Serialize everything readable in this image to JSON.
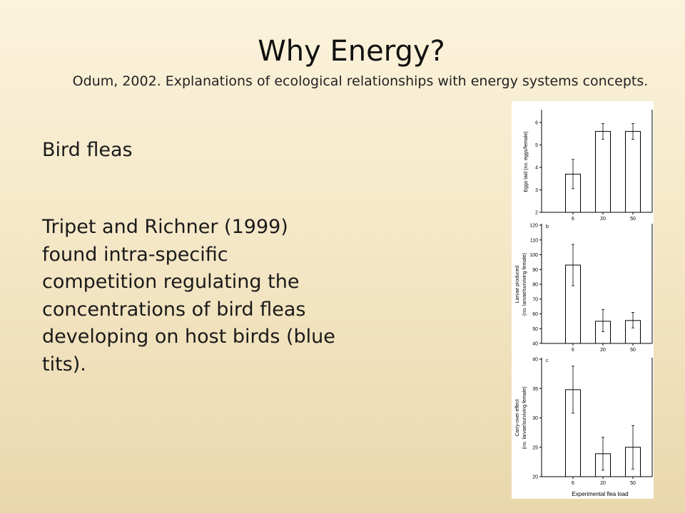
{
  "slide": {
    "title": "Why Energy?",
    "subtitle": "Odum, 2002.  Explanations of ecological relationships with energy systems concepts.",
    "heading": "Bird fleas",
    "body": "Tripet and Richner (1999) found intra-specific competition regulating the concentrations of bird fleas developing on host birds (blue tits)."
  },
  "figure": {
    "xlabel": "Experimental flea load"
  },
  "chart_data": [
    {
      "type": "bar",
      "panel_label": "",
      "ylabel": "Eggs laid (no. eggs/female)",
      "ylim": [
        2,
        6.5
      ],
      "yticks": [
        "2",
        "3",
        "4",
        "5",
        "6"
      ],
      "categories": [
        "6",
        "20",
        "50"
      ],
      "values": [
        3.7,
        5.6,
        5.6
      ],
      "error": [
        [
          3.05,
          4.35
        ],
        [
          5.25,
          5.95
        ],
        [
          5.25,
          5.95
        ]
      ]
    },
    {
      "type": "bar",
      "panel_label": "b",
      "ylabel_line1": "Larvae produced",
      "ylabel_line2": "(no. larvae/surviving female)",
      "ylim": [
        40,
        120
      ],
      "yticks": [
        "40",
        "50",
        "60",
        "70",
        "80",
        "90",
        "100",
        "110",
        "120"
      ],
      "categories": [
        "6",
        "20",
        "50"
      ],
      "values": [
        93,
        55,
        55.5
      ],
      "error": [
        [
          79,
          107
        ],
        [
          48,
          63
        ],
        [
          50.5,
          61
        ]
      ]
    },
    {
      "type": "bar",
      "panel_label": "c",
      "ylabel_line1": "Carry-over effect",
      "ylabel_line2": "(no. larvae/surviving female)",
      "ylim": [
        20,
        40
      ],
      "yticks": [
        "20",
        "25",
        "30",
        "35",
        "40"
      ],
      "categories": [
        "6",
        "20",
        "50"
      ],
      "values": [
        34.8,
        23.9,
        25
      ],
      "error": [
        [
          30.8,
          38.8
        ],
        [
          21.1,
          26.7
        ],
        [
          21.3,
          28.7
        ]
      ]
    }
  ]
}
